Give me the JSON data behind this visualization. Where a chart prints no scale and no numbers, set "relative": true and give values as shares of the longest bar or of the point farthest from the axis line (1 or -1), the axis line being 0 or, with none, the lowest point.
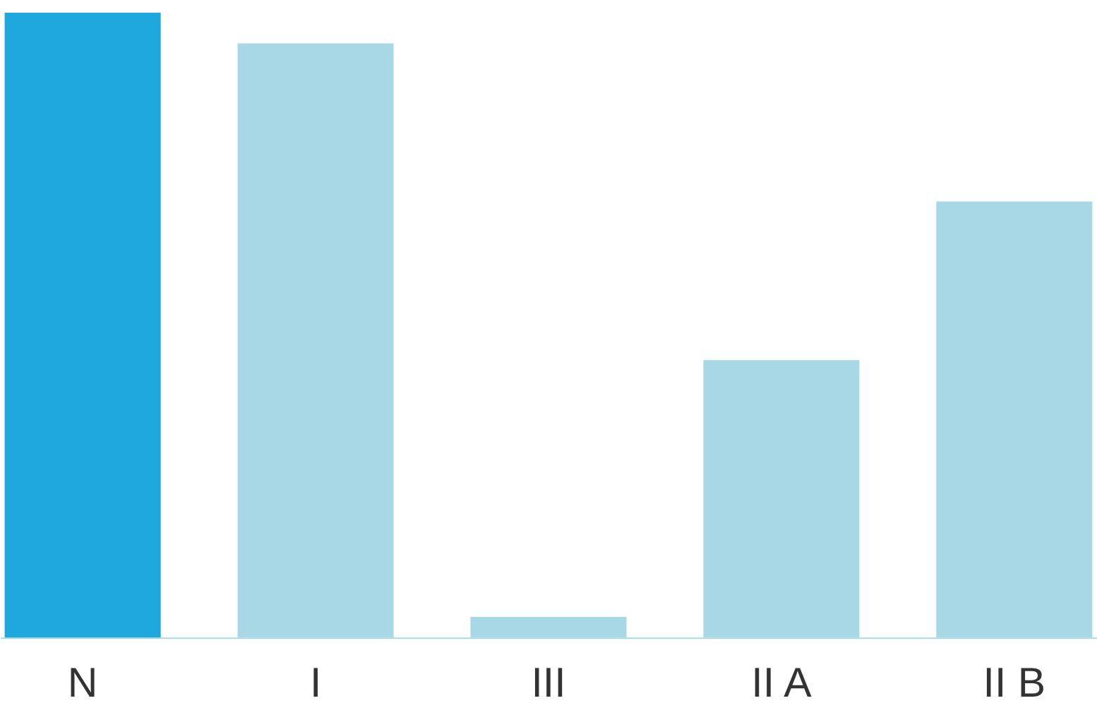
{
  "chart_data": {
    "type": "bar",
    "relative": true,
    "categories": [
      "N",
      "I",
      "III",
      "II A",
      "II B"
    ],
    "values": [
      1,
      0.951,
      0.033,
      0.444,
      0.698
    ],
    "colors": [
      "#1fa8dc",
      "#a8d8e5",
      "#a8d8e5",
      "#a8d8e5",
      "#a8d8e5"
    ]
  }
}
